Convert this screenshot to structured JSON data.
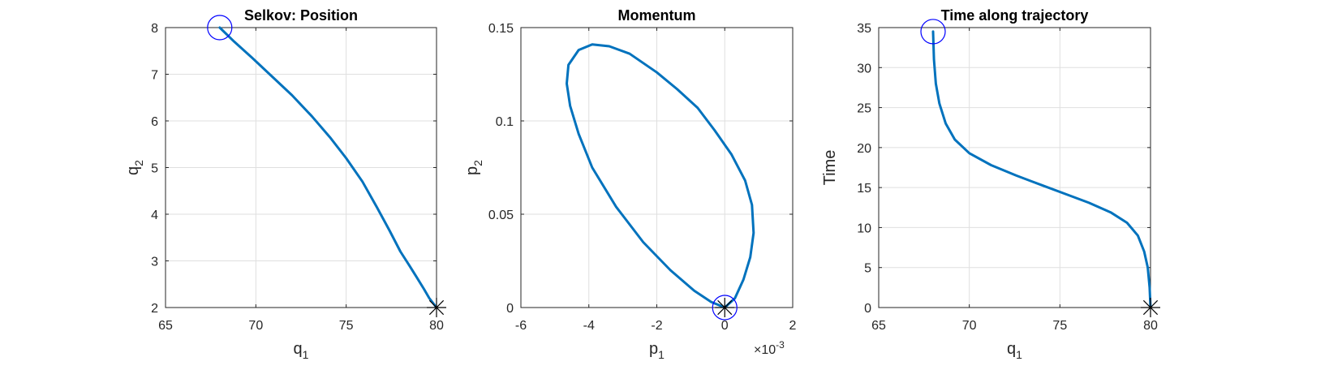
{
  "chart_data": [
    {
      "type": "line",
      "title": "Selkov: Position",
      "xlabel": "q",
      "xlabel_sub": "1",
      "ylabel": "q",
      "ylabel_sub": "2",
      "xlim": [
        65,
        80
      ],
      "ylim": [
        2,
        8
      ],
      "xticks": [
        65,
        70,
        75,
        80
      ],
      "yticks": [
        2,
        3,
        4,
        5,
        6,
        7,
        8
      ],
      "grid": true,
      "line_color": "#0072BD",
      "series": [
        {
          "x": [
            68.0,
            68.8,
            69.8,
            70.9,
            72.0,
            73.1,
            74.1,
            75.0,
            75.9,
            76.7,
            77.4,
            78.0,
            78.5,
            78.9,
            79.3,
            79.6,
            80.0
          ],
          "y": [
            8.0,
            7.7,
            7.35,
            6.95,
            6.55,
            6.1,
            5.65,
            5.2,
            4.7,
            4.15,
            3.65,
            3.2,
            2.9,
            2.65,
            2.4,
            2.2,
            2.0
          ]
        }
      ],
      "start_marker": {
        "shape": "circle",
        "color": "#0000FF",
        "x": 68.0,
        "y": 8.0
      },
      "end_marker": {
        "shape": "asterisk",
        "color": "#000000",
        "x": 80.0,
        "y": 2.0
      }
    },
    {
      "type": "line",
      "title": "Momentum",
      "xlabel": "p",
      "xlabel_sub": "1",
      "ylabel": "p",
      "ylabel_sub": "2",
      "xlim": [
        -6,
        2
      ],
      "ylim": [
        0,
        0.15
      ],
      "xticks": [
        -6,
        -4,
        -2,
        0,
        2
      ],
      "xtick_labels": [
        "-6",
        "-4",
        "-2",
        "0",
        "2"
      ],
      "yticks": [
        0,
        0.05,
        0.1,
        0.15
      ],
      "ytick_labels": [
        "0",
        "0.05",
        "0.1",
        "0.15"
      ],
      "x_exponent_label": "×10",
      "x_exponent_power": "-3",
      "grid": true,
      "line_color": "#0072BD",
      "series": [
        {
          "x": [
            0.0,
            0.3,
            0.55,
            0.75,
            0.85,
            0.8,
            0.6,
            0.2,
            -0.3,
            -0.8,
            -1.4,
            -2.0,
            -2.8,
            -3.4,
            -3.9,
            -4.3,
            -4.6,
            -4.65,
            -4.55,
            -4.3,
            -3.9,
            -3.2,
            -2.4,
            -1.6,
            -0.9,
            -0.4,
            0.0
          ],
          "y": [
            0.0,
            0.005,
            0.015,
            0.027,
            0.04,
            0.055,
            0.068,
            0.082,
            0.095,
            0.107,
            0.117,
            0.126,
            0.136,
            0.14,
            0.141,
            0.138,
            0.13,
            0.12,
            0.108,
            0.093,
            0.075,
            0.054,
            0.035,
            0.02,
            0.009,
            0.003,
            0.0
          ]
        }
      ],
      "start_marker": {
        "shape": "circle",
        "color": "#0000FF",
        "x": 0.0,
        "y": 0.0
      },
      "end_marker": {
        "shape": "asterisk",
        "color": "#000000",
        "x": 0.0,
        "y": 0.0
      }
    },
    {
      "type": "line",
      "title": "Time along trajectory",
      "xlabel": "q",
      "xlabel_sub": "1",
      "ylabel": "Time",
      "ylabel_sub": "",
      "xlim": [
        65,
        80
      ],
      "ylim": [
        0,
        35
      ],
      "xticks": [
        65,
        70,
        75,
        80
      ],
      "yticks": [
        0,
        5,
        10,
        15,
        20,
        25,
        30,
        35
      ],
      "grid": true,
      "line_color": "#0072BD",
      "series": [
        {
          "x": [
            68.0,
            68.05,
            68.15,
            68.35,
            68.7,
            69.2,
            70.0,
            71.2,
            72.6,
            74.0,
            75.3,
            76.6,
            77.8,
            78.7,
            79.3,
            79.65,
            79.85,
            79.95,
            80.0
          ],
          "y": [
            34.5,
            31.0,
            28.0,
            25.5,
            23.0,
            21.0,
            19.3,
            17.8,
            16.5,
            15.3,
            14.2,
            13.1,
            11.9,
            10.6,
            9.0,
            7.0,
            5.0,
            2.5,
            0.0
          ]
        }
      ],
      "start_marker": {
        "shape": "circle",
        "color": "#0000FF",
        "x": 68.0,
        "y": 34.5
      },
      "end_marker": {
        "shape": "asterisk",
        "color": "#000000",
        "x": 80.0,
        "y": 0.0
      }
    }
  ]
}
